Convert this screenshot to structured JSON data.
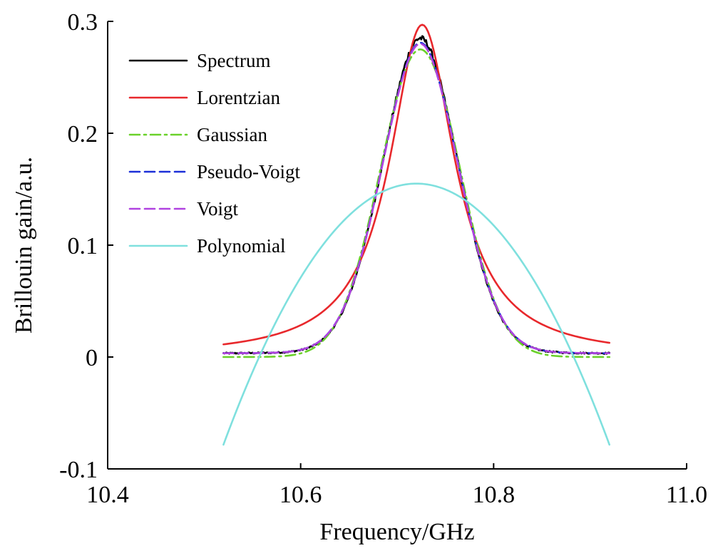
{
  "chart_data": {
    "type": "line",
    "title": "",
    "xlabel": "Frequency/GHz",
    "ylabel": "Brillouin gain/a.u.",
    "xlim": [
      10.4,
      11.0
    ],
    "ylim": [
      -0.1,
      0.3
    ],
    "xticks": [
      "10.4",
      "10.6",
      "10.8",
      "11.0"
    ],
    "yticks": [
      "-0.1",
      "0",
      "0.1",
      "0.2",
      "0.3"
    ],
    "grid": false,
    "legend_position": "top-left",
    "x_range": [
      10.52,
      10.92
    ],
    "series": [
      {
        "name": "Spectrum",
        "color": "#000000",
        "dash": "solid",
        "model": "spectrum",
        "peak": 0.282,
        "center": 10.724,
        "fwhm": 0.095,
        "offset": 0.003
      },
      {
        "name": "Lorentzian",
        "color": "#e8282c",
        "dash": "solid",
        "model": "lorentzian",
        "peak": 0.297,
        "center": 10.726,
        "fwhm": 0.082,
        "offset": 0.0
      },
      {
        "name": "Gaussian",
        "color": "#6ad12a",
        "dash": "dashdot",
        "model": "gaussian",
        "peak": 0.275,
        "center": 10.724,
        "fwhm": 0.098,
        "offset": 0.0
      },
      {
        "name": "Pseudo-Voigt",
        "color": "#1c2fd8",
        "dash": "dashed",
        "model": "voigt",
        "peak": 0.278,
        "center": 10.724,
        "fwhm": 0.096,
        "offset": 0.003
      },
      {
        "name": "Voigt",
        "color": "#b043e0",
        "dash": "dashed",
        "model": "voigt",
        "peak": 0.277,
        "center": 10.724,
        "fwhm": 0.096,
        "offset": 0.003
      },
      {
        "name": "Polynomial",
        "color": "#7fe0de",
        "dash": "solid",
        "model": "polynomial",
        "peak": 0.155,
        "center": 10.72,
        "zero_crossings": [
          10.557,
          10.883
        ]
      }
    ]
  }
}
